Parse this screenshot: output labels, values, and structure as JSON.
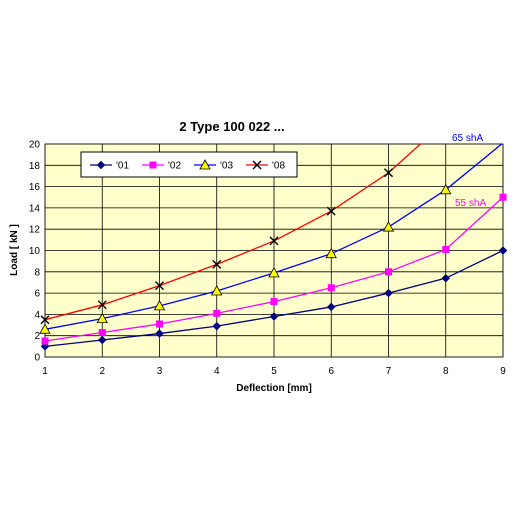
{
  "chart_data": {
    "type": "line",
    "title": "2  Type 100 022 ...",
    "xlabel": "Deflection [mm]",
    "ylabel": "Load [ kN ]",
    "xlim": [
      1,
      9
    ],
    "ylim": [
      0,
      20
    ],
    "x_ticks": [
      "1",
      "2",
      "3",
      "4",
      "5",
      "6",
      "7",
      "8",
      "9"
    ],
    "y_ticks": [
      "0",
      "2",
      "4",
      "6",
      "8",
      "10",
      "12",
      "14",
      "16",
      "18",
      "20"
    ],
    "grid": true,
    "legend_position": "top-left",
    "plot_background": "#ffffcc",
    "series": [
      {
        "name": "'01",
        "color": "#000080",
        "marker": "diamond",
        "x": [
          1,
          2,
          3,
          4,
          5,
          6,
          7,
          8,
          9
        ],
        "y": [
          1.0,
          1.6,
          2.2,
          2.9,
          3.8,
          4.7,
          6.0,
          7.4,
          10.0
        ]
      },
      {
        "name": "'02",
        "color": "#ff00ff",
        "marker": "square",
        "x": [
          1,
          2,
          3,
          4,
          5,
          6,
          7,
          8,
          9
        ],
        "y": [
          1.5,
          2.3,
          3.1,
          4.1,
          5.2,
          6.5,
          8.0,
          10.1,
          15.0
        ]
      },
      {
        "name": "'03",
        "color": "#0000ff",
        "marker": "triangle",
        "x": [
          1,
          2,
          3,
          4,
          5,
          6,
          7,
          8,
          9
        ],
        "y": [
          2.6,
          3.6,
          4.8,
          6.2,
          7.9,
          9.7,
          12.2,
          15.7,
          20.1
        ]
      },
      {
        "name": "'08",
        "color": "#ff0000",
        "marker": "x",
        "x": [
          1,
          2,
          3,
          4,
          5,
          6,
          7,
          7.6
        ],
        "y": [
          3.5,
          4.9,
          6.7,
          8.7,
          10.9,
          13.7,
          17.3,
          20.2
        ],
        "marked_points": 7
      }
    ],
    "annotations": [
      {
        "text": "65 shA",
        "color": "#0000ff"
      },
      {
        "text": "55 shA",
        "color": "#ff00ff"
      }
    ]
  }
}
